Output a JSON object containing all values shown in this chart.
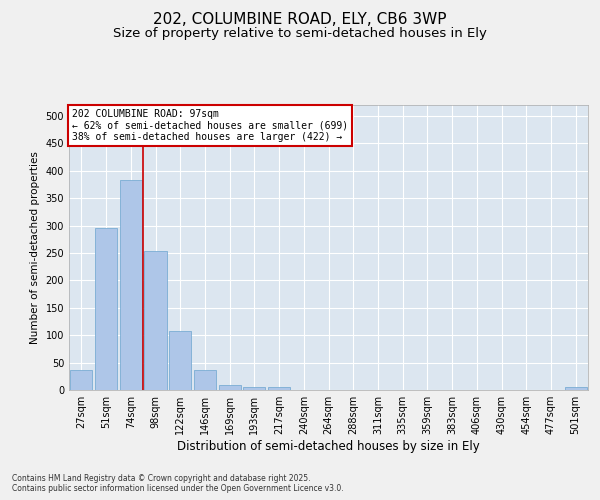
{
  "title": "202, COLUMBINE ROAD, ELY, CB6 3WP",
  "subtitle": "Size of property relative to semi-detached houses in Ely",
  "xlabel": "Distribution of semi-detached houses by size in Ely",
  "ylabel": "Number of semi-detached properties",
  "categories": [
    "27sqm",
    "51sqm",
    "74sqm",
    "98sqm",
    "122sqm",
    "146sqm",
    "169sqm",
    "193sqm",
    "217sqm",
    "240sqm",
    "264sqm",
    "288sqm",
    "311sqm",
    "335sqm",
    "359sqm",
    "383sqm",
    "406sqm",
    "430sqm",
    "454sqm",
    "477sqm",
    "501sqm"
  ],
  "values": [
    37,
    295,
    383,
    253,
    108,
    37,
    10,
    6,
    5,
    0,
    0,
    0,
    0,
    0,
    0,
    0,
    0,
    0,
    0,
    0,
    5
  ],
  "bar_color": "#aec6e8",
  "bar_edge_color": "#7aadd4",
  "vline_color": "#cc0000",
  "vline_x_index": 3,
  "annotation_title": "202 COLUMBINE ROAD: 97sqm",
  "annotation_line1": "← 62% of semi-detached houses are smaller (699)",
  "annotation_line2": "38% of semi-detached houses are larger (422) →",
  "annotation_box_color": "#ffffff",
  "annotation_box_edge": "#cc0000",
  "ylim": [
    0,
    520
  ],
  "yticks": [
    0,
    50,
    100,
    150,
    200,
    250,
    300,
    350,
    400,
    450,
    500
  ],
  "plot_bg_color": "#dce6f0",
  "fig_bg_color": "#f0f0f0",
  "footer1": "Contains HM Land Registry data © Crown copyright and database right 2025.",
  "footer2": "Contains public sector information licensed under the Open Government Licence v3.0.",
  "title_fontsize": 11,
  "subtitle_fontsize": 9.5,
  "ylabel_fontsize": 7.5,
  "xlabel_fontsize": 8.5,
  "tick_fontsize": 7,
  "annotation_fontsize": 7,
  "footer_fontsize": 5.5
}
